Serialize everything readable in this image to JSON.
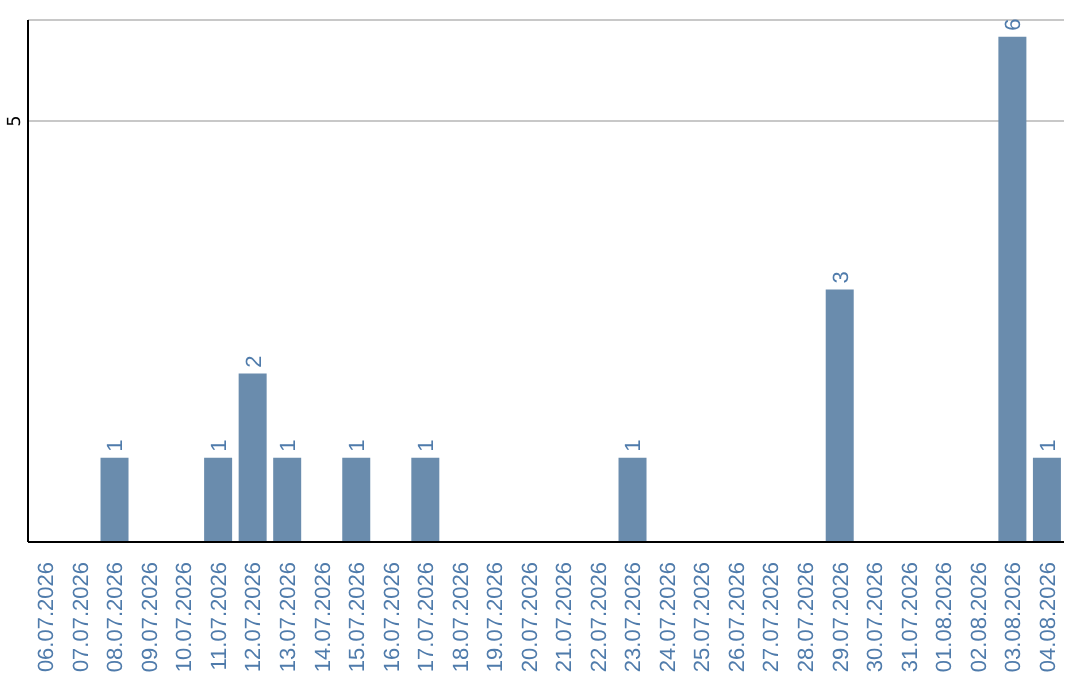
{
  "chart_data": {
    "type": "bar",
    "categories": [
      "06.07.2026",
      "07.07.2026",
      "08.07.2026",
      "09.07.2026",
      "10.07.2026",
      "11.07.2026",
      "12.07.2026",
      "13.07.2026",
      "14.07.2026",
      "15.07.2026",
      "16.07.2026",
      "17.07.2026",
      "18.07.2026",
      "19.07.2026",
      "20.07.2026",
      "21.07.2026",
      "22.07.2026",
      "23.07.2026",
      "24.07.2026",
      "25.07.2026",
      "26.07.2026",
      "27.07.2026",
      "28.07.2026",
      "29.07.2026",
      "30.07.2026",
      "31.07.2026",
      "01.08.2026",
      "02.08.2026",
      "03.08.2026",
      "04.08.2026"
    ],
    "values": [
      0,
      0,
      1,
      0,
      0,
      1,
      2,
      1,
      0,
      1,
      0,
      1,
      0,
      0,
      0,
      0,
      0,
      1,
      0,
      0,
      0,
      0,
      0,
      3,
      0,
      0,
      0,
      0,
      6,
      1
    ],
    "value_labels": [
      null,
      null,
      "1",
      null,
      null,
      "1",
      "2",
      "1",
      null,
      "1",
      null,
      "1",
      null,
      null,
      null,
      null,
      null,
      "1",
      null,
      null,
      null,
      null,
      null,
      "3",
      null,
      null,
      null,
      null,
      "6",
      "1"
    ],
    "color": "#6a8cad",
    "ylim": [
      0,
      6.2
    ],
    "yticks": [
      5
    ],
    "grid": "y"
  }
}
